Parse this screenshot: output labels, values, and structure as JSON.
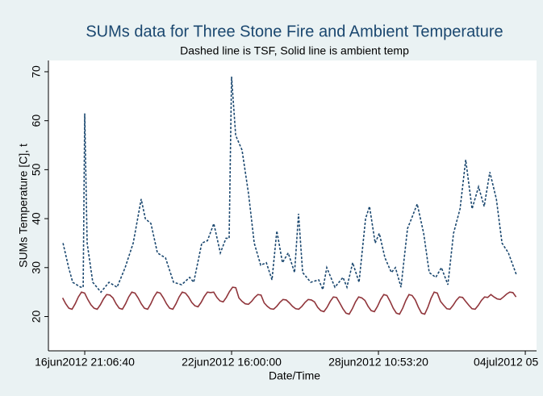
{
  "chart_data": {
    "type": "line",
    "title": "SUMs data for Three Stone Fire and Ambient Temperature",
    "subtitle": "Dashed line is TSF, Solid line is ambient temp",
    "x_label": "Date/Time",
    "y_label": "SUMs Temperature [C], t",
    "xlim": [
      -13.5,
      451.5
    ],
    "xticks": [
      {
        "value": 21.11,
        "label": "16jun2012 21:06:40"
      },
      {
        "value": 161,
        "label": "22jun2012 16:00:00"
      },
      {
        "value": 300.89,
        "label": "28jun2012 10:53:20"
      },
      {
        "value": 440.78,
        "label": "04jul2012 05"
      }
    ],
    "ylim": [
      13,
      72.3
    ],
    "yticks": [
      20,
      30,
      40,
      50,
      60,
      70
    ],
    "grid": false,
    "series": [
      {
        "color": "#1a476f",
        "dash": true,
        "x": [
          0.4,
          5.8,
          9.6,
          17.3,
          19.6,
          21.1,
          23.4,
          28.8,
          36.5,
          44.2,
          51.9,
          59.6,
          67.3,
          74.9,
          78.8,
          84.2,
          90.3,
          98.0,
          105.7,
          113.4,
          121.1,
          124.9,
          132.6,
          138.0,
          144.1,
          150.3,
          155.7,
          158.7,
          161.0,
          164.9,
          171.0,
          177.2,
          182.6,
          188.7,
          194.1,
          199.5,
          204.1,
          209.5,
          214.9,
          221.0,
          224.8,
          228.7,
          236.4,
          244.0,
          247.9,
          251.7,
          259.4,
          267.1,
          270.9,
          276.3,
          282.4,
          288.6,
          292.4,
          297.8,
          301.7,
          307.1,
          313.2,
          317.1,
          322.4,
          328.6,
          332.4,
          337.8,
          344.0,
          349.3,
          355.5,
          360.9,
          367.0,
          372.4,
          378.6,
          384.0,
          390.1,
          396.2,
          401.6,
          407.0,
          413.2,
          418.6,
          424.7,
          432.4
        ],
        "values": [
          35,
          30,
          27,
          26,
          26,
          61.5,
          35,
          27,
          25,
          27,
          26,
          30,
          35,
          44,
          40,
          39,
          33,
          32,
          27,
          26.5,
          28,
          27,
          35,
          35.5,
          39,
          33,
          36,
          36,
          69,
          57,
          54,
          45,
          35,
          30.5,
          31,
          27.5,
          37.5,
          31,
          33,
          29,
          41,
          29,
          27,
          27.5,
          25.5,
          30,
          26,
          28,
          26,
          31,
          27,
          40,
          42.5,
          35,
          37,
          32,
          29,
          30,
          26,
          38,
          40,
          43,
          37,
          29,
          28,
          30,
          26.5,
          37,
          42,
          52,
          42,
          46.5,
          42.5,
          49.5,
          44,
          35,
          33,
          28.5
        ]
      },
      {
        "color": "#90353b",
        "dash": false,
        "x": [
          0,
          3,
          6,
          9,
          12,
          15,
          18,
          21,
          24,
          27,
          30,
          33,
          36,
          39,
          42,
          45,
          48,
          51,
          54,
          57,
          60,
          63,
          66,
          69,
          72,
          75,
          78,
          81,
          84,
          87,
          90,
          93,
          96,
          99,
          102,
          105,
          108,
          111,
          114,
          117,
          120,
          123,
          126,
          129,
          132,
          135,
          138,
          141,
          144,
          147,
          150,
          153,
          156,
          159,
          162,
          165,
          168,
          171,
          174,
          177,
          180,
          183,
          186,
          189,
          192,
          195,
          198,
          201,
          204,
          207,
          210,
          213,
          216,
          219,
          222,
          225,
          228,
          231,
          234,
          237,
          240,
          243,
          246,
          249,
          252,
          255,
          258,
          261,
          264,
          267,
          270,
          273,
          276,
          279,
          282,
          285,
          288,
          291,
          294,
          297,
          300,
          303,
          306,
          309,
          312,
          315,
          318,
          321,
          324,
          327,
          330,
          333,
          336,
          339,
          342,
          345,
          348,
          351,
          354,
          357,
          360,
          363,
          366,
          369,
          372,
          375,
          378,
          381,
          384,
          387,
          390,
          393,
          396,
          399,
          402,
          405,
          408,
          411,
          414,
          417,
          420,
          423,
          426,
          429,
          432
        ],
        "values": [
          23.8,
          22.6,
          21.7,
          21.5,
          22.6,
          24.0,
          25,
          24.8,
          23.5,
          22.4,
          21.7,
          21.5,
          22.4,
          23.6,
          24.5,
          24.4,
          23.8,
          22.6,
          21.7,
          21.5,
          22.6,
          24.0,
          25,
          24.8,
          23.8,
          22.6,
          21.7,
          21.5,
          22.6,
          24.0,
          25,
          24.8,
          23.8,
          22.6,
          21.7,
          21.5,
          22.6,
          24.0,
          25,
          24.8,
          24.0,
          22.9,
          22.2,
          22,
          22.9,
          24.1,
          25,
          24.9,
          25.0,
          23.9,
          23.2,
          23,
          23.9,
          25.1,
          26,
          25.9,
          23.8,
          23.1,
          22.6,
          22.5,
          23.1,
          23.9,
          24.5,
          24.4,
          22.8,
          22.1,
          21.6,
          21.5,
          22.1,
          22.9,
          23.5,
          23.4,
          22.8,
          22.1,
          21.6,
          21.5,
          22.1,
          22.9,
          23.5,
          23.4,
          23.0,
          21.9,
          21.2,
          21,
          21.9,
          23.1,
          24,
          23.9,
          22.8,
          21.6,
          20.7,
          20.5,
          21.6,
          23.0,
          24,
          23.8,
          23.3,
          22.1,
          21.2,
          21,
          22.1,
          23.5,
          24.5,
          24.3,
          23.1,
          21.7,
          20.7,
          20.5,
          21.7,
          23.3,
          24.5,
          24.3,
          23.4,
          21.9,
          20.7,
          20.5,
          21.9,
          23.7,
          25,
          24.8,
          23.1,
          22.3,
          21.6,
          21.5,
          22.3,
          23.3,
          24,
          23.9,
          23.1,
          22.3,
          21.6,
          21.5,
          22.3,
          23.3,
          24,
          23.9,
          24.5,
          24.0,
          23.6,
          23.5,
          24.0,
          24.6,
          25,
          24.9,
          24.0
        ]
      }
    ]
  }
}
